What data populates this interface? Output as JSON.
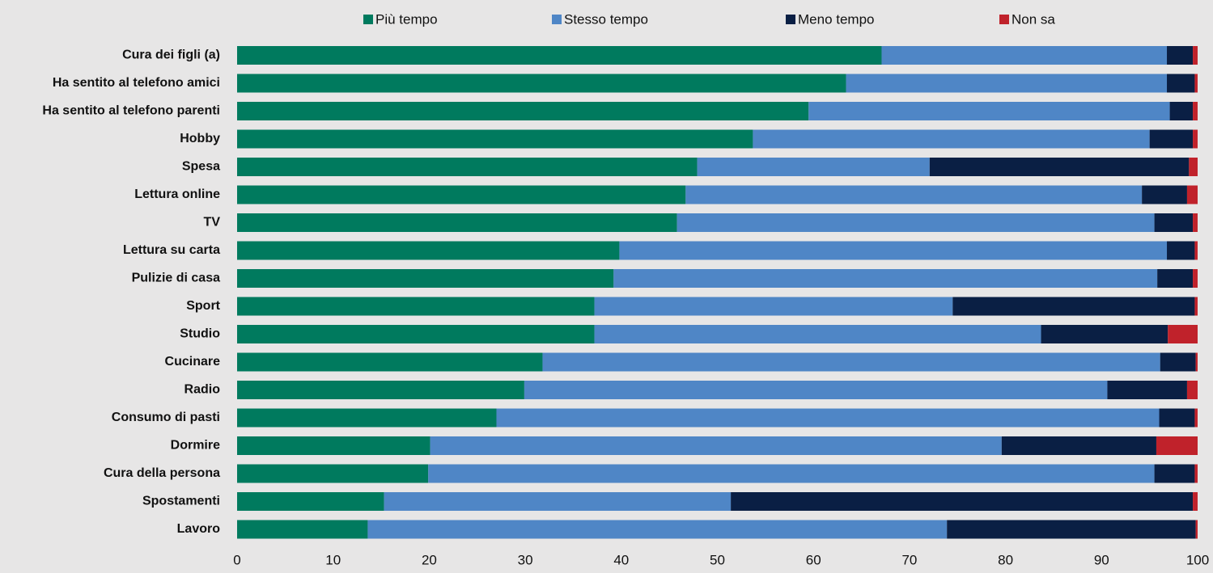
{
  "chart_data": {
    "type": "stacked-bar-horizontal",
    "categories": [
      "Cura dei figli (a)",
      "Ha sentito al telefono amici",
      "Ha sentito al telefono parenti",
      "Hobby",
      "Spesa",
      "Lettura online",
      "TV",
      "Lettura su carta",
      "Pulizie di casa",
      "Sport",
      "Studio",
      "Cucinare",
      "Radio",
      "Consumo di pasti",
      "Dormire",
      "Cura della persona",
      "Spostamenti",
      "Lavoro"
    ],
    "series": [
      {
        "name": "Più tempo",
        "color": "#007a5e",
        "values": [
          67.1,
          63.4,
          59.5,
          53.7,
          47.9,
          46.7,
          45.8,
          39.8,
          39.2,
          37.2,
          37.2,
          31.8,
          29.9,
          27.0,
          20.1,
          19.9,
          15.3,
          13.6
        ]
      },
      {
        "name": "Stesso tempo",
        "color": "#4f86c6",
        "values": [
          29.7,
          33.4,
          37.6,
          41.3,
          24.2,
          47.5,
          49.7,
          57.0,
          56.6,
          37.3,
          46.5,
          64.3,
          60.7,
          69.0,
          59.5,
          75.6,
          36.1,
          60.3
        ]
      },
      {
        "name": "Meno tempo",
        "color": "#0a1f44",
        "values": [
          2.7,
          2.9,
          2.4,
          4.5,
          27.0,
          4.7,
          4.0,
          2.9,
          3.7,
          25.2,
          13.2,
          3.7,
          8.3,
          3.7,
          16.1,
          4.2,
          48.1,
          25.9
        ]
      },
      {
        "name": "Non sa",
        "color": "#c0222b",
        "values": [
          0.5,
          0.3,
          0.5,
          0.5,
          0.9,
          1.1,
          0.5,
          0.3,
          0.5,
          0.3,
          3.1,
          0.2,
          1.1,
          0.3,
          4.3,
          0.3,
          0.5,
          0.2
        ]
      }
    ],
    "xlim": [
      0,
      100
    ],
    "xticks": [
      0,
      10,
      20,
      30,
      40,
      50,
      60,
      70,
      80,
      90,
      100
    ],
    "legend": "top"
  }
}
